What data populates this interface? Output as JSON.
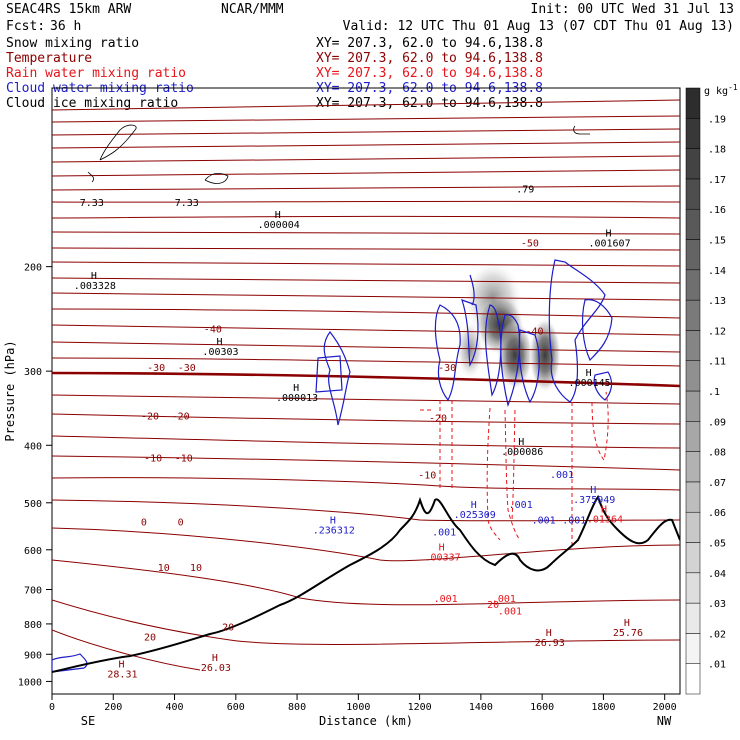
{
  "header": {
    "model": "SEAC4RS 15km ARW",
    "forecast_label": "Fcst:",
    "forecast_value": "36 h",
    "org": "NCAR/MMM",
    "init": "Init: 00 UTC Wed 31 Jul 13",
    "valid": "Valid: 12 UTC Thu 01 Aug 13 (07 CDT Thu 01 Aug 13)"
  },
  "fields": [
    {
      "name": "Snow mixing ratio",
      "color": "#000000",
      "xy": "XY= 207.3, 62.0 to  94.6,138.8"
    },
    {
      "name": "Temperature",
      "color": "#8b0000",
      "xy": "XY= 207.3, 62.0 to  94.6,138.8"
    },
    {
      "name": "Rain water mixing ratio",
      "color": "#e8141a",
      "xy": "XY= 207.3, 62.0 to  94.6,138.8"
    },
    {
      "name": "Cloud water mixing ratio",
      "color": "#1c1cc8",
      "xy": "XY= 207.3, 62.0 to  94.6,138.8"
    },
    {
      "name": "Cloud ice mixing ratio",
      "color": "#000000",
      "xy": "XY= 207.3, 62.0 to  94.6,138.8"
    }
  ],
  "chart_data": {
    "type": "cross-section",
    "xlabel": "Distance (km)",
    "ylabel": "Pressure (hPa)",
    "xlim": [
      0,
      2050
    ],
    "ylim": [
      1050,
      100
    ],
    "x_ticks": [
      "0",
      "200",
      "400",
      "600",
      "800",
      "1000",
      "1200",
      "1400",
      "1600",
      "1800",
      "2000"
    ],
    "y_ticks": [
      "200",
      "300",
      "400",
      "500",
      "600",
      "700",
      "800",
      "900",
      "1000"
    ],
    "x_end_labels": {
      "left": "SE",
      "right": "NW"
    },
    "colorbar": {
      "unit": "g kg",
      "unit_exp": "-1",
      "levels": [
        ".01",
        ".02",
        ".03",
        ".04",
        ".05",
        ".06",
        ".07",
        ".08",
        ".09",
        ".1",
        ".11",
        ".12",
        ".13",
        ".14",
        ".15",
        ".16",
        ".17",
        ".18",
        ".19"
      ]
    },
    "temperature_contours": {
      "color": "#8b0000",
      "interval_c": 5,
      "labels": [
        {
          "text": "-50",
          "x": 1560,
          "p": 185
        },
        {
          "text": "-40",
          "x": 525,
          "p": 258
        },
        {
          "text": "-40",
          "x": 1575,
          "p": 260
        },
        {
          "text": "-30",
          "x": 340,
          "p": 300
        },
        {
          "text": "-30",
          "x": 440,
          "p": 300
        },
        {
          "text": "-30",
          "x": 1290,
          "p": 300
        },
        {
          "text": "-20",
          "x": 320,
          "p": 362
        },
        {
          "text": "-20",
          "x": 420,
          "p": 362
        },
        {
          "text": "-20",
          "x": 1260,
          "p": 365
        },
        {
          "text": "-10",
          "x": 330,
          "p": 426
        },
        {
          "text": "-10",
          "x": 430,
          "p": 426
        },
        {
          "text": "-10",
          "x": 1225,
          "p": 455
        },
        {
          "text": "0",
          "x": 300,
          "p": 546
        },
        {
          "text": "0",
          "x": 420,
          "p": 546
        },
        {
          "text": "10",
          "x": 365,
          "p": 651
        },
        {
          "text": "10",
          "x": 470,
          "p": 651
        },
        {
          "text": "20",
          "x": 320,
          "p": 853
        },
        {
          "text": "20",
          "x": 575,
          "p": 820
        }
      ],
      "extrema": [
        {
          "text": "28.31",
          "x": 230,
          "p": 985
        },
        {
          "text": "26.03",
          "x": 535,
          "p": 960
        },
        {
          "text": "26.93",
          "x": 1625,
          "p": 872
        },
        {
          "text": "25.76",
          "x": 1880,
          "p": 839
        }
      ]
    },
    "snow_labels": [
      {
        "text": ".000004",
        "x": 740,
        "p": 172
      },
      {
        "text": ".003328",
        "x": 140,
        "p": 218
      },
      {
        "text": ".00303",
        "x": 550,
        "p": 282
      },
      {
        "text": ".000013",
        "x": 800,
        "p": 337
      },
      {
        "text": ".000145",
        "x": 1755,
        "p": 318
      },
      {
        "text": ".001607",
        "x": 1820,
        "p": 185
      }
    ],
    "ice_label": {
      "text": ".000086",
      "x": 1535,
      "p": 415
    },
    "ice_extra_labels": [
      {
        "text": "7.33",
        "x": 440,
        "p": 158
      },
      {
        "text": "7.33",
        "x": 130,
        "p": 158
      },
      {
        "text": ".79",
        "x": 1545,
        "p": 150
      }
    ],
    "cloud_water_labels": [
      {
        "text": ".236312",
        "x": 920,
        "p": 563
      },
      {
        "text": ".025309",
        "x": 1380,
        "p": 530
      },
      {
        "text": ".001",
        "x": 1280,
        "p": 568
      },
      {
        "text": ".001",
        "x": 1530,
        "p": 510
      },
      {
        "text": ".001",
        "x": 1605,
        "p": 542
      },
      {
        "text": ".001",
        "x": 1665,
        "p": 454
      },
      {
        "text": ".375949",
        "x": 1770,
        "p": 500
      },
      {
        "text": ".001",
        "x": 1705,
        "p": 542
      }
    ],
    "rain_labels": [
      {
        "text": ".00337",
        "x": 1275,
        "p": 625
      },
      {
        "text": ".01364",
        "x": 1805,
        "p": 540
      },
      {
        "text": ".001",
        "x": 1285,
        "p": 735
      },
      {
        "text": "20",
        "x": 1440,
        "p": 752
      },
      {
        "text": ".001",
        "x": 1475,
        "p": 735
      },
      {
        "text": ".001",
        "x": 1495,
        "p": 772
      }
    ]
  }
}
